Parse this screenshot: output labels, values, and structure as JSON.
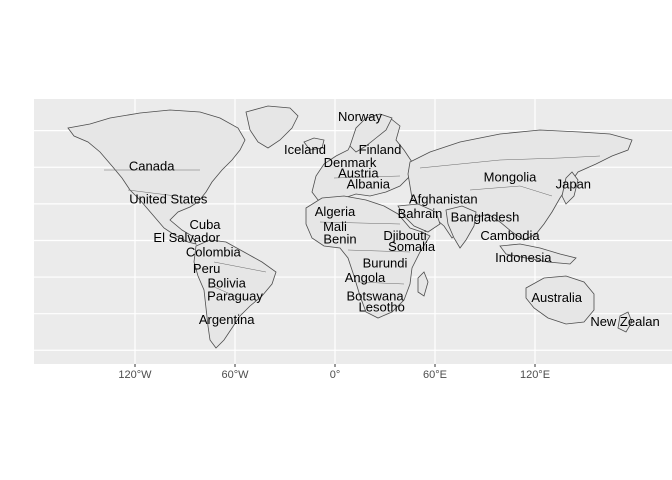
{
  "map": {
    "panel_background": "#ebebeb",
    "gridline_color": "#ffffff",
    "land_fill": "#e6e6e6",
    "border_color": "#4d4d4d",
    "x_axis_ticks": [
      "120°W",
      "60°W",
      "0°",
      "60°E",
      "120°E"
    ],
    "x_axis_tick_longitudes": [
      -120,
      -60,
      0,
      60,
      120
    ],
    "lon_range": [
      -200,
      200
    ],
    "lat_range": [
      -60,
      88
    ],
    "country_labels": [
      {
        "name": "Norway",
        "lon": 15,
        "lat": 88
      },
      {
        "name": "Iceland",
        "lon": -18,
        "lat": 70
      },
      {
        "name": "Finland",
        "lon": 27,
        "lat": 70
      },
      {
        "name": "Denmark",
        "lon": 9,
        "lat": 63
      },
      {
        "name": "Austria",
        "lon": 14,
        "lat": 57
      },
      {
        "name": "Albania",
        "lon": 20,
        "lat": 51
      },
      {
        "name": "Canada",
        "lon": -110,
        "lat": 61
      },
      {
        "name": "United States",
        "lon": -100,
        "lat": 43
      },
      {
        "name": "Mongolia",
        "lon": 105,
        "lat": 55
      },
      {
        "name": "Japan",
        "lon": 143,
        "lat": 51
      },
      {
        "name": "Afghanistan",
        "lon": 65,
        "lat": 43
      },
      {
        "name": "Bahrain",
        "lon": 51,
        "lat": 35
      },
      {
        "name": "Bangladesh",
        "lon": 90,
        "lat": 33
      },
      {
        "name": "Algeria",
        "lon": 0,
        "lat": 36
      },
      {
        "name": "Mali",
        "lon": 0,
        "lat": 28
      },
      {
        "name": "Benin",
        "lon": 3,
        "lat": 21
      },
      {
        "name": "Djibouti",
        "lon": 42,
        "lat": 23
      },
      {
        "name": "Somalia",
        "lon": 46,
        "lat": 17
      },
      {
        "name": "Burundi",
        "lon": 30,
        "lat": 8
      },
      {
        "name": "Cambodia",
        "lon": 105,
        "lat": 23
      },
      {
        "name": "Indonesia",
        "lon": 113,
        "lat": 11
      },
      {
        "name": "Cuba",
        "lon": -78,
        "lat": 29
      },
      {
        "name": "El Salvador",
        "lon": -89,
        "lat": 22
      },
      {
        "name": "Colombia",
        "lon": -73,
        "lat": 14
      },
      {
        "name": "Peru",
        "lon": -77,
        "lat": 5
      },
      {
        "name": "Bolivia",
        "lon": -65,
        "lat": -3
      },
      {
        "name": "Paraguay",
        "lon": -60,
        "lat": -10
      },
      {
        "name": "Argentina",
        "lon": -65,
        "lat": -23
      },
      {
        "name": "Angola",
        "lon": 18,
        "lat": 0
      },
      {
        "name": "Botswana",
        "lon": 24,
        "lat": -10
      },
      {
        "name": "Lesotho",
        "lon": 28,
        "lat": -16
      },
      {
        "name": "Australia",
        "lon": 133,
        "lat": -11
      },
      {
        "name": "New Zealan",
        "lon": 174,
        "lat": -24
      }
    ]
  }
}
